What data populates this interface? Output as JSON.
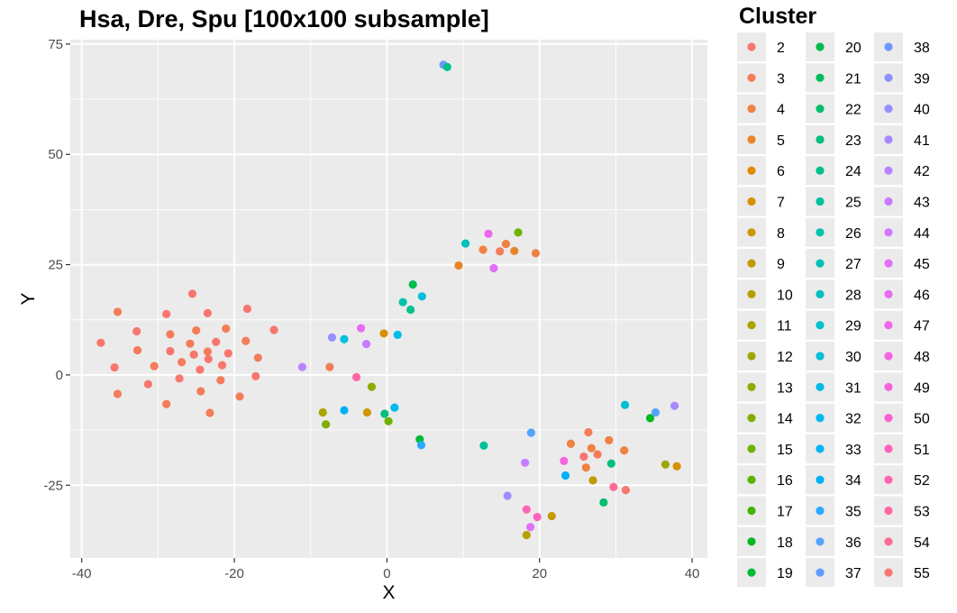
{
  "chart_data": {
    "type": "scatter",
    "title": "Hsa, Dre, Spu [100x100 subsample]",
    "xlabel": "X",
    "ylabel": "Y",
    "xlim": [
      -41.5,
      42
    ],
    "ylim": [
      -41.5,
      76
    ],
    "xticks": [
      -40,
      -20,
      0,
      20,
      40
    ],
    "yticks": [
      -25,
      0,
      25,
      50,
      75
    ],
    "grid": true,
    "legend": {
      "title": "Cluster",
      "placement": "right",
      "entries": [
        {
          "label": "2",
          "color": "#F8766D"
        },
        {
          "label": "3",
          "color": "#F47C59"
        },
        {
          "label": "4",
          "color": "#EF8142"
        },
        {
          "label": "5",
          "color": "#E88526"
        },
        {
          "label": "6",
          "color": "#E08A00"
        },
        {
          "label": "7",
          "color": "#D79000"
        },
        {
          "label": "8",
          "color": "#CD9600"
        },
        {
          "label": "9",
          "color": "#C29A00"
        },
        {
          "label": "10",
          "color": "#B79F00"
        },
        {
          "label": "11",
          "color": "#ABA300"
        },
        {
          "label": "12",
          "color": "#9EA700"
        },
        {
          "label": "13",
          "color": "#90AA00"
        },
        {
          "label": "14",
          "color": "#80AE00"
        },
        {
          "label": "15",
          "color": "#6FB100"
        },
        {
          "label": "16",
          "color": "#5BB300"
        },
        {
          "label": "17",
          "color": "#41B600"
        },
        {
          "label": "18",
          "color": "#00B81F"
        },
        {
          "label": "19",
          "color": "#00BA38"
        },
        {
          "label": "20",
          "color": "#00BB4B"
        },
        {
          "label": "21",
          "color": "#00BD5C"
        },
        {
          "label": "22",
          "color": "#00BE6C"
        },
        {
          "label": "23",
          "color": "#00BF7C"
        },
        {
          "label": "24",
          "color": "#00C08B"
        },
        {
          "label": "25",
          "color": "#00C09A"
        },
        {
          "label": "26",
          "color": "#00C1A9"
        },
        {
          "label": "27",
          "color": "#00C0B7"
        },
        {
          "label": "28",
          "color": "#00C0C4"
        },
        {
          "label": "29",
          "color": "#00BFD0"
        },
        {
          "label": "30",
          "color": "#00BEDC"
        },
        {
          "label": "31",
          "color": "#00BCE7"
        },
        {
          "label": "32",
          "color": "#00B9F0"
        },
        {
          "label": "33",
          "color": "#00B5F9"
        },
        {
          "label": "34",
          "color": "#00B0F6"
        },
        {
          "label": "35",
          "color": "#2BAAFF"
        },
        {
          "label": "36",
          "color": "#54A3FF"
        },
        {
          "label": "37",
          "color": "#619CFF"
        },
        {
          "label": "38",
          "color": "#6E96FF"
        },
        {
          "label": "39",
          "color": "#8B93FF"
        },
        {
          "label": "40",
          "color": "#9590FF"
        },
        {
          "label": "41",
          "color": "#A58AFF"
        },
        {
          "label": "42",
          "color": "#B983FF"
        },
        {
          "label": "43",
          "color": "#C77CFF"
        },
        {
          "label": "44",
          "color": "#D376FF"
        },
        {
          "label": "45",
          "color": "#DF70F8"
        },
        {
          "label": "46",
          "color": "#E76BF3"
        },
        {
          "label": "47",
          "color": "#EE67EC"
        },
        {
          "label": "48",
          "color": "#F564E3"
        },
        {
          "label": "49",
          "color": "#FA62DB"
        },
        {
          "label": "50",
          "color": "#FD61D1"
        },
        {
          "label": "51",
          "color": "#FF62BC"
        },
        {
          "label": "52",
          "color": "#FF64B0"
        },
        {
          "label": "53",
          "color": "#FF67A4"
        },
        {
          "label": "54",
          "color": "#FD6C95"
        },
        {
          "label": "55",
          "color": "#F8766D"
        }
      ]
    },
    "points": [
      {
        "x": -37.5,
        "y": 7.3,
        "c": "2"
      },
      {
        "x": -35.3,
        "y": 14.3,
        "c": "3"
      },
      {
        "x": -35.7,
        "y": 1.7,
        "c": "2"
      },
      {
        "x": -35.3,
        "y": -4.3,
        "c": "3"
      },
      {
        "x": -32.8,
        "y": 9.9,
        "c": "2"
      },
      {
        "x": -32.7,
        "y": 5.6,
        "c": "3"
      },
      {
        "x": -31.3,
        "y": -2.1,
        "c": "2"
      },
      {
        "x": -30.5,
        "y": 2.0,
        "c": "3"
      },
      {
        "x": -28.9,
        "y": 13.8,
        "c": "2"
      },
      {
        "x": -28.4,
        "y": 9.2,
        "c": "3"
      },
      {
        "x": -28.4,
        "y": 5.4,
        "c": "2"
      },
      {
        "x": -28.9,
        "y": -6.6,
        "c": "3"
      },
      {
        "x": -27.2,
        "y": -0.8,
        "c": "2"
      },
      {
        "x": -26.9,
        "y": 2.9,
        "c": "3"
      },
      {
        "x": -25.5,
        "y": 18.4,
        "c": "2"
      },
      {
        "x": -25.8,
        "y": 7.1,
        "c": "3"
      },
      {
        "x": -25.3,
        "y": 4.6,
        "c": "2"
      },
      {
        "x": -25.0,
        "y": 10.1,
        "c": "3"
      },
      {
        "x": -24.5,
        "y": 1.2,
        "c": "2"
      },
      {
        "x": -24.4,
        "y": -3.7,
        "c": "3"
      },
      {
        "x": -23.5,
        "y": 14.0,
        "c": "2"
      },
      {
        "x": -23.5,
        "y": 5.3,
        "c": "3"
      },
      {
        "x": -23.4,
        "y": 3.6,
        "c": "2"
      },
      {
        "x": -23.2,
        "y": -8.6,
        "c": "3"
      },
      {
        "x": -22.4,
        "y": 7.5,
        "c": "2"
      },
      {
        "x": -21.8,
        "y": -1.2,
        "c": "3"
      },
      {
        "x": -21.6,
        "y": 2.2,
        "c": "2"
      },
      {
        "x": -21.1,
        "y": 10.5,
        "c": "3"
      },
      {
        "x": -20.8,
        "y": 4.9,
        "c": "2"
      },
      {
        "x": -19.3,
        "y": -4.9,
        "c": "3"
      },
      {
        "x": -18.3,
        "y": 15.0,
        "c": "2"
      },
      {
        "x": -18.5,
        "y": 7.7,
        "c": "3"
      },
      {
        "x": -17.2,
        "y": -0.3,
        "c": "2"
      },
      {
        "x": -16.9,
        "y": 3.9,
        "c": "3"
      },
      {
        "x": -14.8,
        "y": 10.2,
        "c": "2"
      },
      {
        "x": -11.1,
        "y": 1.8,
        "c": "42"
      },
      {
        "x": -7.5,
        "y": 1.8,
        "c": "3"
      },
      {
        "x": -7.2,
        "y": 8.5,
        "c": "40"
      },
      {
        "x": -5.6,
        "y": 8.1,
        "c": "30"
      },
      {
        "x": -3.4,
        "y": 10.6,
        "c": "46"
      },
      {
        "x": -2.7,
        "y": 7.0,
        "c": "43"
      },
      {
        "x": -4.0,
        "y": -0.5,
        "c": "53"
      },
      {
        "x": -2.0,
        "y": -2.7,
        "c": "13"
      },
      {
        "x": -0.4,
        "y": 9.4,
        "c": "7"
      },
      {
        "x": 1.4,
        "y": 9.1,
        "c": "31"
      },
      {
        "x": 2.1,
        "y": 16.5,
        "c": "26"
      },
      {
        "x": 3.4,
        "y": 20.5,
        "c": "20"
      },
      {
        "x": 3.1,
        "y": 14.8,
        "c": "24"
      },
      {
        "x": 4.6,
        "y": 17.8,
        "c": "30"
      },
      {
        "x": -8.4,
        "y": -8.5,
        "c": "11"
      },
      {
        "x": -8.0,
        "y": -11.2,
        "c": "14"
      },
      {
        "x": -5.6,
        "y": -8.0,
        "c": "34"
      },
      {
        "x": -2.6,
        "y": -8.5,
        "c": "8"
      },
      {
        "x": -0.3,
        "y": -8.8,
        "c": "23"
      },
      {
        "x": 0.2,
        "y": -10.5,
        "c": "15"
      },
      {
        "x": 1.0,
        "y": -7.4,
        "c": "32"
      },
      {
        "x": 4.3,
        "y": -14.6,
        "c": "19"
      },
      {
        "x": 4.5,
        "y": -15.9,
        "c": "35"
      },
      {
        "x": 7.4,
        "y": 70.3,
        "c": "38"
      },
      {
        "x": 7.9,
        "y": 69.8,
        "c": "24"
      },
      {
        "x": 9.4,
        "y": 24.8,
        "c": "5"
      },
      {
        "x": 10.3,
        "y": 29.8,
        "c": "27"
      },
      {
        "x": 12.6,
        "y": 28.4,
        "c": "4"
      },
      {
        "x": 13.3,
        "y": 32.0,
        "c": "47"
      },
      {
        "x": 14.0,
        "y": 24.2,
        "c": "45"
      },
      {
        "x": 14.8,
        "y": 28.0,
        "c": "3"
      },
      {
        "x": 15.6,
        "y": 29.7,
        "c": "4"
      },
      {
        "x": 16.7,
        "y": 28.1,
        "c": "5"
      },
      {
        "x": 17.2,
        "y": 32.3,
        "c": "15"
      },
      {
        "x": 19.5,
        "y": 27.6,
        "c": "4"
      },
      {
        "x": 12.7,
        "y": -16.0,
        "c": "25"
      },
      {
        "x": 15.8,
        "y": -27.4,
        "c": "41"
      },
      {
        "x": 18.1,
        "y": -19.9,
        "c": "43"
      },
      {
        "x": 18.9,
        "y": -13.1,
        "c": "36"
      },
      {
        "x": 18.3,
        "y": -30.5,
        "c": "52"
      },
      {
        "x": 18.8,
        "y": -34.5,
        "c": "45"
      },
      {
        "x": 18.3,
        "y": -36.3,
        "c": "10"
      },
      {
        "x": 19.7,
        "y": -32.2,
        "c": "51"
      },
      {
        "x": 21.6,
        "y": -32.0,
        "c": "9"
      },
      {
        "x": 23.2,
        "y": -19.5,
        "c": "48"
      },
      {
        "x": 23.4,
        "y": -22.8,
        "c": "34"
      },
      {
        "x": 24.1,
        "y": -15.6,
        "c": "4"
      },
      {
        "x": 25.8,
        "y": -18.5,
        "c": "2"
      },
      {
        "x": 26.1,
        "y": -21.0,
        "c": "4"
      },
      {
        "x": 26.4,
        "y": -13.0,
        "c": "3"
      },
      {
        "x": 26.8,
        "y": -16.6,
        "c": "4"
      },
      {
        "x": 27.0,
        "y": -23.9,
        "c": "9"
      },
      {
        "x": 27.6,
        "y": -18.0,
        "c": "3"
      },
      {
        "x": 28.4,
        "y": -28.9,
        "c": "22"
      },
      {
        "x": 29.1,
        "y": -14.8,
        "c": "4"
      },
      {
        "x": 29.4,
        "y": -20.1,
        "c": "23"
      },
      {
        "x": 29.7,
        "y": -25.4,
        "c": "54"
      },
      {
        "x": 31.1,
        "y": -17.1,
        "c": "4"
      },
      {
        "x": 31.2,
        "y": -6.8,
        "c": "29"
      },
      {
        "x": 31.3,
        "y": -26.1,
        "c": "55"
      },
      {
        "x": 34.5,
        "y": -9.8,
        "c": "18"
      },
      {
        "x": 35.2,
        "y": -8.5,
        "c": "36"
      },
      {
        "x": 36.5,
        "y": -20.3,
        "c": "12"
      },
      {
        "x": 37.7,
        "y": -7.0,
        "c": "41"
      },
      {
        "x": 38.0,
        "y": -20.7,
        "c": "7"
      }
    ]
  }
}
